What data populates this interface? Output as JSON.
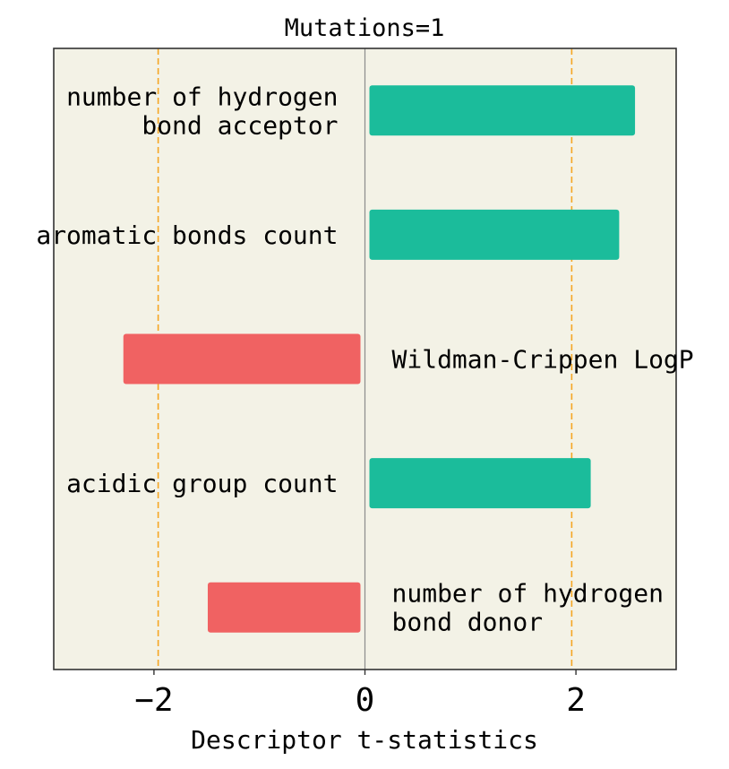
{
  "chart_data": {
    "type": "bar",
    "orientation": "horizontal",
    "title": "Mutations=1",
    "xlabel": "Descriptor t-statistics",
    "ylabel": "",
    "xlim": [
      -2.95,
      2.95
    ],
    "x_ticks": [
      -2,
      0,
      2
    ],
    "x_tick_labels": [
      "−2",
      "0",
      "2"
    ],
    "threshold_lines": [
      -1.96,
      1.96
    ],
    "grid": false,
    "legend": "none",
    "categories": [
      [
        "number of hydrogen",
        "bond acceptor"
      ],
      [
        "aromatic bonds count"
      ],
      [
        "Wildman-Crippen LogP"
      ],
      [
        "acidic group count"
      ],
      [
        "number of hydrogen",
        "bond donor"
      ]
    ],
    "values": [
      2.56,
      2.41,
      -2.29,
      2.14,
      -1.49
    ]
  },
  "colors": {
    "background": "#f3f2e6",
    "positive_bar": "#1bbc9b",
    "negative_bar": "#f06262",
    "threshold_line": "#f5a623",
    "zero_line": "#8c8c8c",
    "frame": "#333333",
    "text": "#000000"
  }
}
